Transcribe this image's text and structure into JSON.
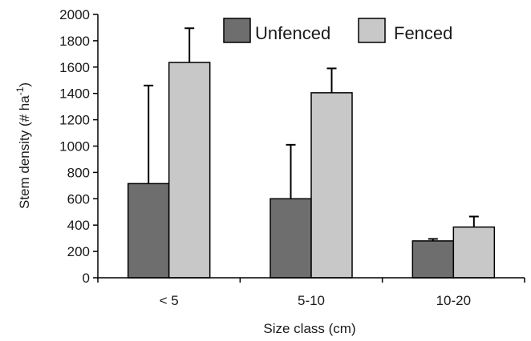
{
  "chart_data": {
    "type": "bar",
    "title": "",
    "xlabel": "Size class (cm)",
    "ylabel_main": "Stem density (# ha",
    "ylabel_sup": "-1",
    "ylabel_tail": ")",
    "ylim": [
      0,
      2000
    ],
    "yticks": [
      "0",
      "200",
      "400",
      "600",
      "800",
      "1000",
      "1200",
      "1400",
      "1600",
      "1800",
      "2000"
    ],
    "categories": [
      "< 5",
      "5-10",
      "10-20"
    ],
    "legend_position": "top-right",
    "series": [
      {
        "name": "Unfenced",
        "color": "#6e6e6e",
        "values": [
          715,
          600,
          280
        ],
        "errors": [
          745,
          410,
          15
        ]
      },
      {
        "name": "Fenced",
        "color": "#c8c8c8",
        "values": [
          1635,
          1405,
          385
        ],
        "errors": [
          260,
          185,
          80
        ]
      }
    ]
  }
}
